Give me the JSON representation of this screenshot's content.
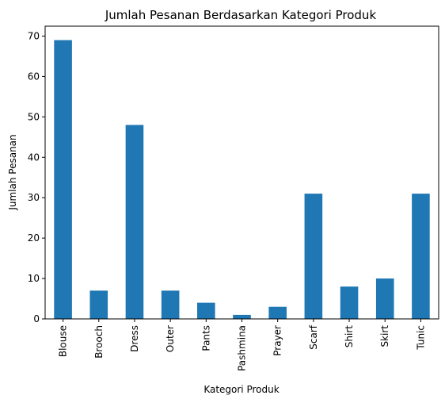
{
  "chart_data": {
    "type": "bar",
    "title": "Jumlah Pesanan Berdasarkan Kategori Produk",
    "xlabel": "Kategori Produk",
    "ylabel": "Jumlah Pesanan",
    "categories": [
      "Blouse",
      "Brooch",
      "Dress",
      "Outer",
      "Pants",
      "Pashmina",
      "Prayer",
      "Scarf",
      "Shirt",
      "Skirt",
      "Tunic"
    ],
    "values": [
      69,
      7,
      48,
      7,
      4,
      1,
      3,
      31,
      8,
      10,
      31
    ],
    "ylim": [
      0,
      72.45
    ],
    "yticks": [
      0,
      10,
      20,
      30,
      40,
      50,
      60,
      70
    ],
    "grid": false,
    "legend": "none",
    "bar_color": "#1f77b4"
  }
}
